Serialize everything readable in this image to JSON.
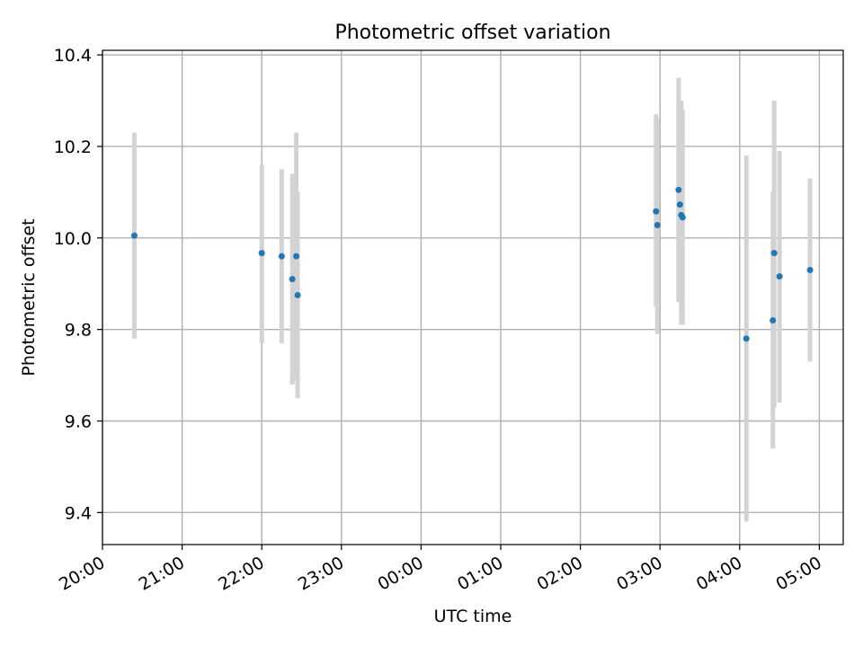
{
  "chart_data": {
    "type": "scatter",
    "title": "Photometric offset variation",
    "xlabel": "UTC time",
    "ylabel": "Photometric offset",
    "grid": true,
    "x_axis_kind": "time",
    "x_range": [
      "20:00",
      "05:18"
    ],
    "ylim": [
      9.33,
      10.41
    ],
    "x_tick_labels": [
      "20:00",
      "21:00",
      "22:00",
      "23:00",
      "00:00",
      "01:00",
      "02:00",
      "03:00",
      "04:00",
      "05:00"
    ],
    "y_ticks": [
      9.4,
      9.6,
      9.8,
      10.0,
      10.2,
      10.4
    ],
    "y_tick_labels": [
      "9.4",
      "9.6",
      "9.8",
      "10.0",
      "10.2",
      "10.4"
    ],
    "colors": {
      "point": "#1f77b4",
      "errorbar": "#d3d3d3",
      "grid": "#b0b0b0"
    },
    "points": [
      {
        "time": "20:24",
        "y": 10.005,
        "ylow": 9.78,
        "yhigh": 10.23
      },
      {
        "time": "22:00",
        "y": 9.967,
        "ylow": 9.77,
        "yhigh": 10.16
      },
      {
        "time": "22:15",
        "y": 9.96,
        "ylow": 9.77,
        "yhigh": 10.15
      },
      {
        "time": "22:23",
        "y": 9.91,
        "ylow": 9.68,
        "yhigh": 10.14
      },
      {
        "time": "22:26",
        "y": 9.96,
        "ylow": 9.69,
        "yhigh": 10.23
      },
      {
        "time": "22:27",
        "y": 9.875,
        "ylow": 9.65,
        "yhigh": 10.1
      },
      {
        "time": "02:57",
        "y": 10.058,
        "ylow": 9.85,
        "yhigh": 10.27
      },
      {
        "time": "02:58",
        "y": 10.028,
        "ylow": 9.79,
        "yhigh": 10.26
      },
      {
        "time": "03:14",
        "y": 10.105,
        "ylow": 9.86,
        "yhigh": 10.35
      },
      {
        "time": "03:15",
        "y": 10.073,
        "ylow": 9.86,
        "yhigh": 10.3
      },
      {
        "time": "03:16",
        "y": 10.05,
        "ylow": 9.81,
        "yhigh": 10.3
      },
      {
        "time": "03:17",
        "y": 10.045,
        "ylow": 9.81,
        "yhigh": 10.28
      },
      {
        "time": "04:05",
        "y": 9.78,
        "ylow": 9.38,
        "yhigh": 10.18
      },
      {
        "time": "04:25",
        "y": 9.82,
        "ylow": 9.54,
        "yhigh": 10.1
      },
      {
        "time": "04:26",
        "y": 9.967,
        "ylow": 9.63,
        "yhigh": 10.3
      },
      {
        "time": "04:30",
        "y": 9.916,
        "ylow": 9.64,
        "yhigh": 10.19
      },
      {
        "time": "04:53",
        "y": 9.93,
        "ylow": 9.73,
        "yhigh": 10.13
      }
    ]
  }
}
